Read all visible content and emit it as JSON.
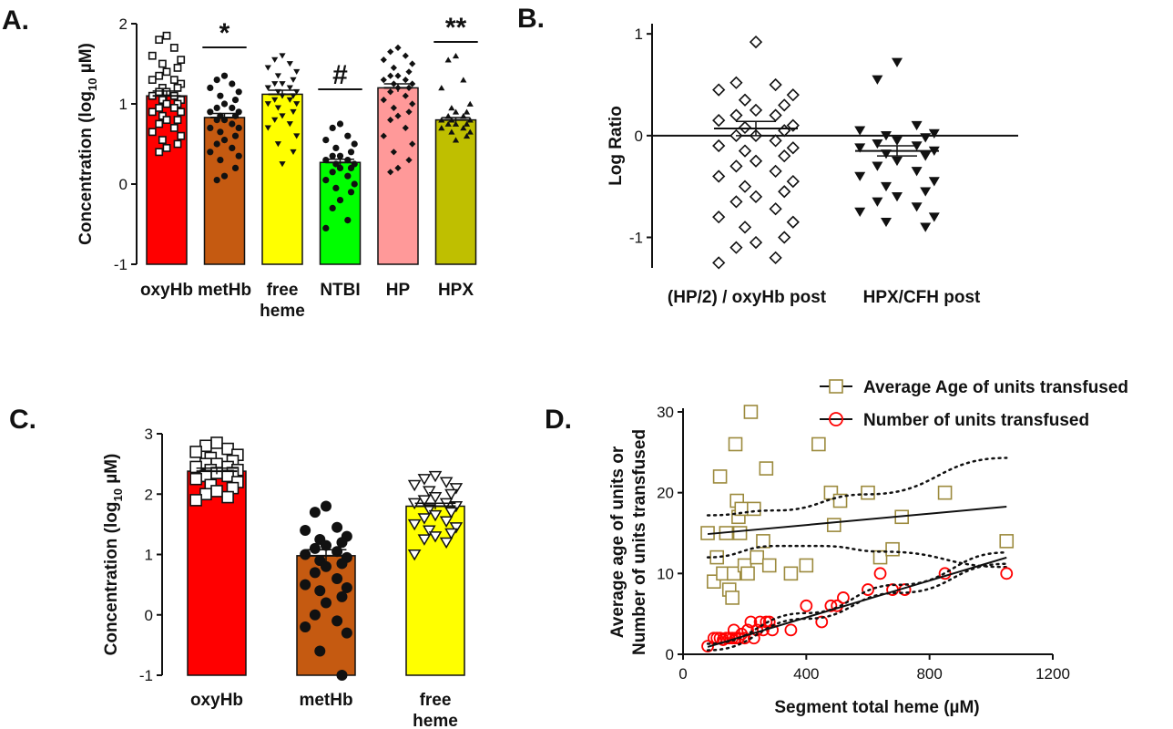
{
  "chart_data": [
    {
      "panel": "A.",
      "type": "bar",
      "ylabel_main": "Concentration (log",
      "ylabel_sub": "10",
      "ylabel_unit": " µM)",
      "ylim": [
        -1,
        2
      ],
      "yticks": [
        -1,
        0,
        1,
        2
      ],
      "grid": false,
      "categories": [
        {
          "label": [
            "oxyHb"
          ],
          "value": 1.1,
          "sem": 0.06,
          "color": "#ff0000",
          "marker": "square-open",
          "sig": "",
          "points": [
            1.85,
            1.8,
            1.7,
            1.6,
            1.55,
            1.5,
            1.45,
            1.4,
            1.35,
            1.3,
            1.3,
            1.25,
            1.2,
            1.2,
            1.15,
            1.15,
            1.1,
            1.1,
            1.05,
            1.05,
            1.0,
            1.0,
            0.95,
            0.95,
            0.9,
            0.9,
            0.85,
            0.8,
            0.8,
            0.75,
            0.7,
            0.65,
            0.6,
            0.55,
            0.5,
            0.45,
            0.4
          ]
        },
        {
          "label": [
            "metHb"
          ],
          "value": 0.83,
          "sem": 0.05,
          "color": "#c55a11",
          "marker": "circle",
          "sig": "*",
          "points": [
            1.35,
            1.3,
            1.25,
            1.2,
            1.15,
            1.1,
            1.05,
            1.0,
            0.95,
            0.95,
            0.9,
            0.9,
            0.85,
            0.85,
            0.8,
            0.8,
            0.75,
            0.7,
            0.7,
            0.65,
            0.6,
            0.55,
            0.5,
            0.45,
            0.4,
            0.35,
            0.3,
            0.2,
            0.1,
            0.05
          ]
        },
        {
          "label": [
            "free",
            "heme"
          ],
          "value": 1.12,
          "sem": 0.05,
          "color": "#ffff00",
          "marker": "triangle-down",
          "sig": "",
          "points": [
            1.6,
            1.55,
            1.5,
            1.45,
            1.4,
            1.35,
            1.3,
            1.25,
            1.25,
            1.2,
            1.2,
            1.15,
            1.15,
            1.1,
            1.1,
            1.05,
            1.05,
            1.0,
            1.0,
            0.95,
            0.9,
            0.85,
            0.8,
            0.75,
            0.7,
            0.6,
            0.5,
            0.4,
            0.25
          ]
        },
        {
          "label": [
            "NTBI"
          ],
          "value": 0.27,
          "sem": 0.04,
          "color": "#00ff00",
          "marker": "circle",
          "sig": "#",
          "points": [
            0.75,
            0.7,
            0.6,
            0.55,
            0.5,
            0.45,
            0.4,
            0.35,
            0.35,
            0.3,
            0.3,
            0.25,
            0.25,
            0.2,
            0.2,
            0.15,
            0.1,
            0.05,
            0.0,
            -0.05,
            -0.1,
            -0.2,
            -0.3,
            -0.45,
            -0.55
          ]
        },
        {
          "label": [
            "HP"
          ],
          "value": 1.2,
          "sem": 0.05,
          "color": "#ff9999",
          "marker": "diamond",
          "sig": "",
          "points": [
            1.7,
            1.65,
            1.6,
            1.55,
            1.5,
            1.45,
            1.4,
            1.35,
            1.35,
            1.3,
            1.3,
            1.25,
            1.25,
            1.2,
            1.2,
            1.15,
            1.1,
            1.05,
            1.0,
            0.95,
            0.9,
            0.85,
            0.8,
            0.7,
            0.6,
            0.5,
            0.4,
            0.3,
            0.2,
            0.15
          ]
        },
        {
          "label": [
            "HPX"
          ],
          "value": 0.8,
          "sem": 0.03,
          "color": "#bfbf00",
          "marker": "triangle-up",
          "sig": "**",
          "points": [
            1.6,
            1.55,
            1.3,
            1.2,
            1.0,
            0.95,
            0.9,
            0.9,
            0.85,
            0.85,
            0.8,
            0.8,
            0.8,
            0.75,
            0.75,
            0.75,
            0.7,
            0.7,
            0.65,
            0.65,
            0.6,
            0.55
          ]
        }
      ]
    },
    {
      "panel": "B.",
      "type": "scatter",
      "ylabel": "Log Ratio",
      "ylim": [
        -1.3,
        1.1
      ],
      "yticks": [
        -1,
        0,
        1
      ],
      "grid": false,
      "reference_line": 0,
      "groups": [
        {
          "label": "(HP/2) / oxyHb post",
          "marker": "diamond-open",
          "mean": 0.07,
          "sem": 0.07,
          "points": [
            0.92,
            0.52,
            0.5,
            0.45,
            0.4,
            0.35,
            0.3,
            0.25,
            0.2,
            0.2,
            0.15,
            0.1,
            0.08,
            0.05,
            0.0,
            0.0,
            -0.05,
            -0.1,
            -0.12,
            -0.15,
            -0.2,
            -0.25,
            -0.3,
            -0.35,
            -0.4,
            -0.45,
            -0.5,
            -0.55,
            -0.6,
            -0.65,
            -0.72,
            -0.8,
            -0.85,
            -0.9,
            -1.0,
            -1.05,
            -1.1,
            -1.2,
            -1.25
          ]
        },
        {
          "label": "HPX/CFH post",
          "marker": "triangle-down",
          "mean": -0.15,
          "sem": 0.05,
          "points": [
            0.72,
            0.55,
            0.1,
            0.05,
            0.02,
            0.0,
            -0.02,
            -0.05,
            -0.08,
            -0.1,
            -0.12,
            -0.15,
            -0.18,
            -0.2,
            -0.25,
            -0.3,
            -0.35,
            -0.4,
            -0.45,
            -0.5,
            -0.55,
            -0.6,
            -0.65,
            -0.7,
            -0.75,
            -0.8,
            -0.85,
            -0.9
          ]
        }
      ]
    },
    {
      "panel": "C.",
      "type": "bar",
      "ylabel_main": "Concentration (log",
      "ylabel_sub": "10",
      "ylabel_unit": " µM)",
      "ylim": [
        -1,
        3
      ],
      "yticks": [
        -1,
        0,
        1,
        2,
        3
      ],
      "grid": false,
      "categories": [
        {
          "label": [
            "oxyHb"
          ],
          "value": 2.38,
          "sem": 0.05,
          "color": "#ff0000",
          "marker": "square-open",
          "sig": "",
          "points": [
            2.85,
            2.8,
            2.75,
            2.7,
            2.65,
            2.6,
            2.55,
            2.5,
            2.5,
            2.45,
            2.45,
            2.4,
            2.4,
            2.35,
            2.35,
            2.3,
            2.3,
            2.25,
            2.2,
            2.15,
            2.1,
            2.05,
            2.0,
            1.95,
            1.9
          ]
        },
        {
          "label": [
            "metHb"
          ],
          "value": 0.98,
          "sem": 0.1,
          "color": "#c55a11",
          "marker": "circle",
          "sig": "",
          "points": [
            1.8,
            1.7,
            1.45,
            1.4,
            1.3,
            1.25,
            1.2,
            1.15,
            1.1,
            1.05,
            1.0,
            0.95,
            0.9,
            0.85,
            0.8,
            0.7,
            0.6,
            0.5,
            0.45,
            0.4,
            0.3,
            0.2,
            0.0,
            -0.1,
            -0.2,
            -0.3,
            -0.6,
            -1.0
          ]
        },
        {
          "label": [
            "free",
            "heme"
          ],
          "value": 1.8,
          "sem": 0.05,
          "color": "#ffff00",
          "marker": "triangle-down-open",
          "sig": "",
          "points": [
            2.3,
            2.25,
            2.2,
            2.15,
            2.1,
            2.05,
            2.0,
            1.95,
            1.9,
            1.85,
            1.85,
            1.8,
            1.75,
            1.7,
            1.65,
            1.6,
            1.55,
            1.5,
            1.45,
            1.4,
            1.35,
            1.3,
            1.25,
            1.2,
            1.0
          ]
        }
      ]
    },
    {
      "panel": "D.",
      "type": "scatter",
      "xlabel": "Segment total heme (µM)",
      "ylabel": [
        "Average age of units or",
        "Number of units transfused"
      ],
      "xlim": [
        0,
        1200
      ],
      "ylim": [
        0,
        30
      ],
      "xticks": [
        0,
        400,
        800,
        1200
      ],
      "yticks": [
        0,
        10,
        20,
        30
      ],
      "grid": false,
      "legend_position": "top-right",
      "series": [
        {
          "name": "Average Age of units transfused",
          "color": "#9c8a3d",
          "marker": "square-open",
          "points": [
            [
              80,
              15
            ],
            [
              100,
              9
            ],
            [
              110,
              12
            ],
            [
              120,
              22
            ],
            [
              130,
              10
            ],
            [
              140,
              15
            ],
            [
              150,
              8
            ],
            [
              160,
              7
            ],
            [
              165,
              10
            ],
            [
              170,
              26
            ],
            [
              175,
              19
            ],
            [
              180,
              17
            ],
            [
              185,
              15
            ],
            [
              190,
              18
            ],
            [
              200,
              11
            ],
            [
              210,
              10
            ],
            [
              220,
              30
            ],
            [
              230,
              18
            ],
            [
              240,
              12
            ],
            [
              260,
              14
            ],
            [
              270,
              23
            ],
            [
              280,
              11
            ],
            [
              350,
              10
            ],
            [
              400,
              11
            ],
            [
              440,
              26
            ],
            [
              480,
              20
            ],
            [
              490,
              16
            ],
            [
              510,
              19
            ],
            [
              600,
              20
            ],
            [
              640,
              12
            ],
            [
              680,
              13
            ],
            [
              710,
              17
            ],
            [
              850,
              20
            ],
            [
              1050,
              14
            ]
          ],
          "fit": {
            "slope": 0.0035,
            "intercept": 14.6,
            "x_range": [
              80,
              1050
            ]
          },
          "ci_upper": [
            [
              80,
              17.2
            ],
            [
              300,
              17.8
            ],
            [
              600,
              19.8
            ],
            [
              1050,
              24.3
            ]
          ],
          "ci_lower": [
            [
              80,
              12.0
            ],
            [
              300,
              13.4
            ],
            [
              450,
              13.4
            ],
            [
              650,
              12.7
            ],
            [
              1050,
              10.8
            ]
          ]
        },
        {
          "name": "Number of units transfused",
          "color": "#ff0000",
          "marker": "circle-open",
          "points": [
            [
              80,
              1
            ],
            [
              100,
              2
            ],
            [
              110,
              2
            ],
            [
              120,
              2
            ],
            [
              130,
              1.8
            ],
            [
              140,
              2
            ],
            [
              150,
              2
            ],
            [
              160,
              2
            ],
            [
              165,
              3
            ],
            [
              170,
              2
            ],
            [
              180,
              2
            ],
            [
              190,
              2.5
            ],
            [
              200,
              2
            ],
            [
              210,
              3
            ],
            [
              220,
              4
            ],
            [
              230,
              2
            ],
            [
              240,
              3
            ],
            [
              250,
              4
            ],
            [
              260,
              3
            ],
            [
              270,
              4
            ],
            [
              280,
              4
            ],
            [
              290,
              3
            ],
            [
              350,
              3
            ],
            [
              400,
              6
            ],
            [
              450,
              4
            ],
            [
              480,
              6
            ],
            [
              500,
              6
            ],
            [
              520,
              7
            ],
            [
              600,
              8
            ],
            [
              640,
              10
            ],
            [
              680,
              8
            ],
            [
              720,
              8
            ],
            [
              850,
              10
            ],
            [
              1050,
              10
            ]
          ],
          "fit": {
            "slope": 0.0114,
            "intercept": 0.0,
            "x_range": [
              80,
              1050
            ]
          },
          "ci_upper": [
            [
              80,
              1.3
            ],
            [
              400,
              5.1
            ],
            [
              700,
              8.6
            ],
            [
              1050,
              12.6
            ]
          ],
          "ci_lower": [
            [
              80,
              0.5
            ],
            [
              400,
              4.4
            ],
            [
              700,
              7.6
            ],
            [
              1050,
              11.2
            ]
          ]
        }
      ]
    }
  ]
}
